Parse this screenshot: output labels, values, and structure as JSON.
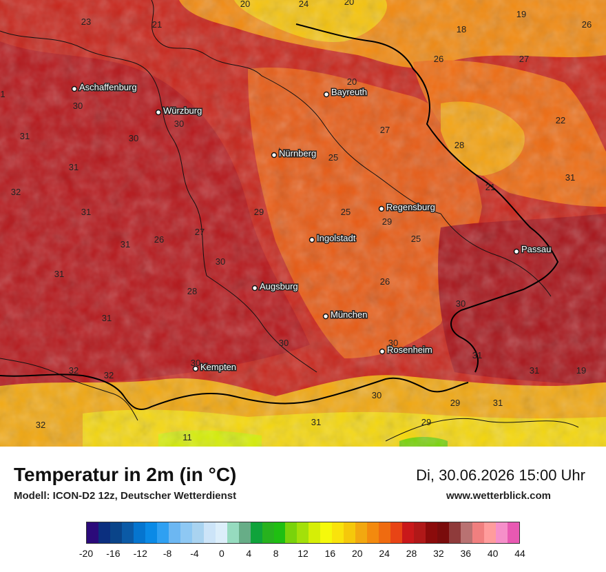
{
  "title": "Temperatur in 2m (in °C)",
  "model": "Modell: ICON-D2 12z, Deutscher Wetterdienst",
  "datetime": "Di, 30.06.2026 15:00 Uhr",
  "website": "www.wetterblick.com",
  "cities": [
    {
      "name": "Aschaffenburg"
    },
    {
      "name": "Würzburg"
    },
    {
      "name": "Bayreuth"
    },
    {
      "name": "Nürnberg"
    },
    {
      "name": "Regensburg"
    },
    {
      "name": "Ingolstadt"
    },
    {
      "name": "Passau"
    },
    {
      "name": "Augsburg"
    },
    {
      "name": "München"
    },
    {
      "name": "Rosenheim"
    },
    {
      "name": "Kempten"
    }
  ],
  "values": [
    "20",
    "24",
    "20",
    "19",
    "23",
    "21",
    "18",
    "26",
    "26",
    "27",
    "20",
    "1",
    "30",
    "30",
    "27",
    "31",
    "30",
    "22",
    "28",
    "25",
    "31",
    "31",
    "21",
    "32",
    "29",
    "25",
    "29",
    "31",
    "26",
    "27",
    "25",
    "31",
    "30",
    "31",
    "26",
    "28",
    "30",
    "31",
    "30",
    "30",
    "31",
    "30",
    "32",
    "31",
    "19",
    "32",
    "30",
    "29",
    "31",
    "32",
    "31",
    "29",
    "11"
  ],
  "legend": {
    "colors": [
      "#2b0a7a",
      "#0b2f7f",
      "#0a4489",
      "#0b5aa6",
      "#0575cf",
      "#0a8ae6",
      "#2fa0f2",
      "#6cb7f2",
      "#8ec8f3",
      "#a9d3f0",
      "#cce4f8",
      "#dceefa",
      "#96dbbf",
      "#67ad87",
      "#0fa33b",
      "#27b21e",
      "#1fbf12",
      "#79d30b",
      "#a3e00a",
      "#d6ee06",
      "#f5f90b",
      "#f9e30c",
      "#f5c80b",
      "#f2a810",
      "#f38a0e",
      "#ef6b10",
      "#e84415",
      "#c9181a",
      "#b01818",
      "#8b0b0b",
      "#7a0c0c",
      "#8f3b3b",
      "#b97272",
      "#f07f7f",
      "#ff9c9c",
      "#f58fc9",
      "#e859b2"
    ],
    "ticks": [
      "-20",
      "-16",
      "-12",
      "-8",
      "-4",
      "0",
      "4",
      "8",
      "12",
      "16",
      "20",
      "24",
      "28",
      "32",
      "36",
      "40",
      "44"
    ]
  }
}
